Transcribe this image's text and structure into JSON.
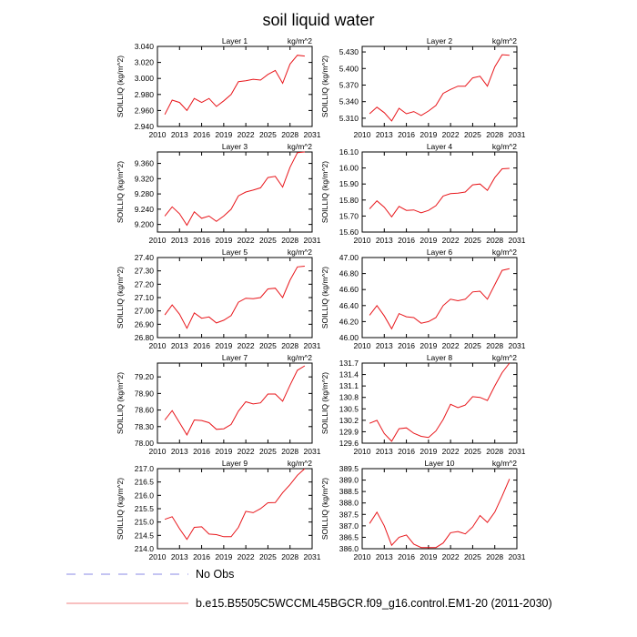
{
  "title": "soil liquid water",
  "legend": [
    {
      "label": "No Obs",
      "style": "dashed",
      "color": "#8a8ae6"
    },
    {
      "label": "b.e15.B5505C5WCCML45BGCR.f09_g16.control.EM1-20 (2011-2030)",
      "style": "solid",
      "color": "#f08080"
    }
  ],
  "chart_data": [
    {
      "type": "line",
      "title": "Layer 1",
      "units": "kg/m^2",
      "ylabel": "SOILLIQ  (kg/m^2)",
      "xlim": [
        2010,
        2031
      ],
      "xticks": [
        2010,
        2013,
        2016,
        2019,
        2022,
        2025,
        2028,
        2031
      ],
      "ylim": [
        2.94,
        3.04
      ],
      "yticks": [
        "2.940",
        "2.960",
        "2.980",
        "3.000",
        "3.020",
        "3.040"
      ],
      "x": [
        2011,
        2012,
        2013,
        2014,
        2015,
        2016,
        2017,
        2018,
        2019,
        2020,
        2021,
        2022,
        2023,
        2024,
        2025,
        2026,
        2027,
        2028,
        2029,
        2030
      ],
      "y": [
        2.955,
        2.973,
        2.97,
        2.96,
        2.975,
        2.97,
        2.975,
        2.965,
        2.972,
        2.98,
        2.996,
        2.997,
        2.999,
        2.998,
        3.005,
        3.01,
        2.994,
        3.018,
        3.029,
        3.028
      ]
    },
    {
      "type": "line",
      "title": "Layer 2",
      "units": "kg/m^2",
      "ylabel": "SOILLIQ  (kg/m^2)",
      "xlim": [
        2010,
        2031
      ],
      "xticks": [
        2010,
        2013,
        2016,
        2019,
        2022,
        2025,
        2028,
        2031
      ],
      "ylim": [
        5.295,
        5.44
      ],
      "yticks": [
        "5.310",
        "5.340",
        "5.370",
        "5.400",
        "5.430"
      ],
      "x": [
        2011,
        2012,
        2013,
        2014,
        2015,
        2016,
        2017,
        2018,
        2019,
        2020,
        2021,
        2022,
        2023,
        2024,
        2025,
        2026,
        2027,
        2028,
        2029,
        2030
      ],
      "y": [
        5.318,
        5.33,
        5.32,
        5.305,
        5.328,
        5.318,
        5.322,
        5.315,
        5.323,
        5.333,
        5.355,
        5.362,
        5.368,
        5.368,
        5.383,
        5.386,
        5.368,
        5.403,
        5.425,
        5.424
      ]
    },
    {
      "type": "line",
      "title": "Layer 3",
      "units": "kg/m^2",
      "ylabel": "SOILLIQ  (kg/m^2)",
      "xlim": [
        2010,
        2031
      ],
      "xticks": [
        2010,
        2013,
        2016,
        2019,
        2022,
        2025,
        2028,
        2031
      ],
      "ylim": [
        9.18,
        9.39
      ],
      "yticks": [
        "9.200",
        "9.240",
        "9.280",
        "9.320",
        "9.360"
      ],
      "x": [
        2011,
        2012,
        2013,
        2014,
        2015,
        2016,
        2017,
        2018,
        2019,
        2020,
        2021,
        2022,
        2023,
        2024,
        2025,
        2026,
        2027,
        2028,
        2029,
        2030
      ],
      "y": [
        9.222,
        9.246,
        9.228,
        9.198,
        9.233,
        9.216,
        9.222,
        9.208,
        9.222,
        9.24,
        9.275,
        9.285,
        9.29,
        9.296,
        9.323,
        9.326,
        9.298,
        9.35,
        9.388,
        9.39
      ]
    },
    {
      "type": "line",
      "title": "Layer 4",
      "units": "kg/m^2",
      "ylabel": "SOILLIQ  (kg/m^2)",
      "xlim": [
        2010,
        2031
      ],
      "xticks": [
        2010,
        2013,
        2016,
        2019,
        2022,
        2025,
        2028,
        2031
      ],
      "ylim": [
        15.6,
        16.1
      ],
      "yticks": [
        "15.60",
        "15.70",
        "15.80",
        "15.90",
        "16.00",
        "16.10"
      ],
      "x": [
        2011,
        2012,
        2013,
        2014,
        2015,
        2016,
        2017,
        2018,
        2019,
        2020,
        2021,
        2022,
        2023,
        2024,
        2025,
        2026,
        2027,
        2028,
        2029,
        2030
      ],
      "y": [
        15.745,
        15.795,
        15.755,
        15.695,
        15.76,
        15.735,
        15.738,
        15.72,
        15.735,
        15.765,
        15.825,
        15.84,
        15.843,
        15.85,
        15.895,
        15.9,
        15.86,
        15.94,
        15.995,
        15.998
      ]
    },
    {
      "type": "line",
      "title": "Layer 5",
      "units": "kg/m^2",
      "ylabel": "SOILLIQ  (kg/m^2)",
      "xlim": [
        2010,
        2031
      ],
      "xticks": [
        2010,
        2013,
        2016,
        2019,
        2022,
        2025,
        2028,
        2031
      ],
      "ylim": [
        26.8,
        27.4
      ],
      "yticks": [
        "26.80",
        "26.90",
        "27.00",
        "27.10",
        "27.20",
        "27.30",
        "27.40"
      ],
      "x": [
        2011,
        2012,
        2013,
        2014,
        2015,
        2016,
        2017,
        2018,
        2019,
        2020,
        2021,
        2022,
        2023,
        2024,
        2025,
        2026,
        2027,
        2028,
        2029,
        2030
      ],
      "y": [
        26.97,
        27.045,
        26.975,
        26.87,
        26.985,
        26.945,
        26.955,
        26.91,
        26.93,
        26.965,
        27.065,
        27.095,
        27.092,
        27.1,
        27.165,
        27.17,
        27.1,
        27.23,
        27.33,
        27.335
      ]
    },
    {
      "type": "line",
      "title": "Layer 6",
      "units": "kg/m^2",
      "ylabel": "SOILLIQ  (kg/m^2)",
      "xlim": [
        2010,
        2031
      ],
      "xticks": [
        2010,
        2013,
        2016,
        2019,
        2022,
        2025,
        2028,
        2031
      ],
      "ylim": [
        46.0,
        47.0
      ],
      "yticks": [
        "46.00",
        "46.20",
        "46.40",
        "46.60",
        "46.80",
        "47.00"
      ],
      "x": [
        2011,
        2012,
        2013,
        2014,
        2015,
        2016,
        2017,
        2018,
        2019,
        2020,
        2021,
        2022,
        2023,
        2024,
        2025,
        2026,
        2027,
        2028,
        2029,
        2030
      ],
      "y": [
        46.28,
        46.4,
        46.27,
        46.11,
        46.3,
        46.26,
        46.25,
        46.18,
        46.2,
        46.25,
        46.4,
        46.48,
        46.46,
        46.48,
        46.57,
        46.58,
        46.48,
        46.66,
        46.84,
        46.86
      ]
    },
    {
      "type": "line",
      "title": "Layer 7",
      "units": "kg/m^2",
      "ylabel": "SOILLIQ  (kg/m^2)",
      "xlim": [
        2010,
        2031
      ],
      "xticks": [
        2010,
        2013,
        2016,
        2019,
        2022,
        2025,
        2028,
        2031
      ],
      "ylim": [
        78.0,
        79.45
      ],
      "yticks": [
        "78.00",
        "78.30",
        "78.60",
        "78.90",
        "79.20"
      ],
      "x": [
        2011,
        2012,
        2013,
        2014,
        2015,
        2016,
        2017,
        2018,
        2019,
        2020,
        2021,
        2022,
        2023,
        2024,
        2025,
        2026,
        2027,
        2028,
        2029,
        2030
      ],
      "y": [
        78.42,
        78.59,
        78.37,
        78.15,
        78.42,
        78.41,
        78.37,
        78.25,
        78.26,
        78.34,
        78.58,
        78.75,
        78.71,
        78.73,
        78.89,
        78.89,
        78.76,
        79.05,
        79.32,
        79.4
      ]
    },
    {
      "type": "line",
      "title": "Layer 8",
      "units": "kg/m^2",
      "ylabel": "SOILLIQ  (kg/m^2)",
      "xlim": [
        2010,
        2031
      ],
      "xticks": [
        2010,
        2013,
        2016,
        2019,
        2022,
        2025,
        2028,
        2031
      ],
      "ylim": [
        129.6,
        131.7
      ],
      "yticks": [
        "129.6",
        "129.9",
        "130.2",
        "130.5",
        "130.8",
        "131.1",
        "131.4",
        "131.7"
      ],
      "x": [
        2011,
        2012,
        2013,
        2014,
        2015,
        2016,
        2017,
        2018,
        2019,
        2020,
        2021,
        2022,
        2023,
        2024,
        2025,
        2026,
        2027,
        2028,
        2029,
        2030
      ],
      "y": [
        130.12,
        130.2,
        129.85,
        129.65,
        129.98,
        130.0,
        129.86,
        129.78,
        129.75,
        129.92,
        130.22,
        130.62,
        130.53,
        130.6,
        130.82,
        130.8,
        130.72,
        131.1,
        131.45,
        131.7
      ]
    },
    {
      "type": "line",
      "title": "Layer 9",
      "units": "kg/m^2",
      "ylabel": "SOILLIQ  (kg/m^2)",
      "xlim": [
        2010,
        2031
      ],
      "xticks": [
        2010,
        2013,
        2016,
        2019,
        2022,
        2025,
        2028,
        2031
      ],
      "ylim": [
        214.0,
        217.0
      ],
      "yticks": [
        "214.0",
        "214.5",
        "215.0",
        "215.5",
        "216.0",
        "216.5",
        "217.0"
      ],
      "x": [
        2011,
        2012,
        2013,
        2014,
        2015,
        2016,
        2017,
        2018,
        2019,
        2020,
        2021,
        2022,
        2023,
        2024,
        2025,
        2026,
        2027,
        2028,
        2029,
        2030
      ],
      "y": [
        215.1,
        215.2,
        214.75,
        214.35,
        214.8,
        214.82,
        214.55,
        214.53,
        214.45,
        214.45,
        214.8,
        215.4,
        215.35,
        215.5,
        215.72,
        215.73,
        216.1,
        216.4,
        216.75,
        217.0
      ]
    },
    {
      "type": "line",
      "title": "Layer 10",
      "units": "kg/m^2",
      "ylabel": "SOILLIQ  (kg/m^2)",
      "xlim": [
        2010,
        2031
      ],
      "xticks": [
        2010,
        2013,
        2016,
        2019,
        2022,
        2025,
        2028,
        2031
      ],
      "ylim": [
        386.0,
        389.5
      ],
      "yticks": [
        "386.0",
        "386.5",
        "387.0",
        "387.5",
        "388.0",
        "388.5",
        "389.0",
        "389.5"
      ],
      "x": [
        2011,
        2012,
        2013,
        2014,
        2015,
        2016,
        2017,
        2018,
        2019,
        2020,
        2021,
        2022,
        2023,
        2024,
        2025,
        2026,
        2027,
        2028,
        2029,
        2030
      ],
      "y": [
        387.1,
        387.6,
        387.0,
        386.15,
        386.5,
        386.6,
        386.2,
        386.05,
        386.05,
        386.05,
        386.25,
        386.7,
        386.75,
        386.65,
        386.95,
        387.45,
        387.15,
        387.6,
        388.3,
        389.05
      ]
    }
  ]
}
